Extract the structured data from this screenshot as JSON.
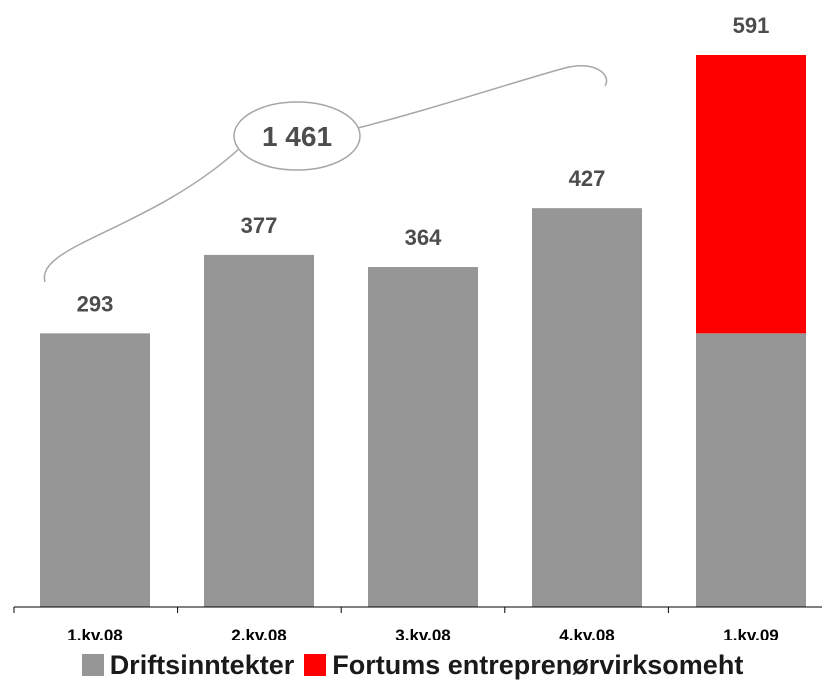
{
  "chart_data": {
    "type": "bar",
    "stacked": true,
    "categories": [
      "1.kv.08",
      "2.kv.08",
      "3.kv.08",
      "4.kv.08",
      "1.kv.09"
    ],
    "series": [
      {
        "name": "Driftsinntekter",
        "color": "#969696",
        "values": [
          293,
          377,
          364,
          427,
          293
        ]
      },
      {
        "name": "Fortums entreprenørvirksomeht",
        "color": "#ff0000",
        "values": [
          0,
          0,
          0,
          0,
          298
        ]
      }
    ],
    "totals": [
      "293",
      "377",
      "364",
      "427",
      "591"
    ],
    "ylim": [
      0,
      591
    ],
    "annotation": {
      "text": "1 461",
      "spans": [
        "1.kv.08",
        "4.kv.08"
      ]
    },
    "legend_position": "bottom",
    "grid": false
  }
}
